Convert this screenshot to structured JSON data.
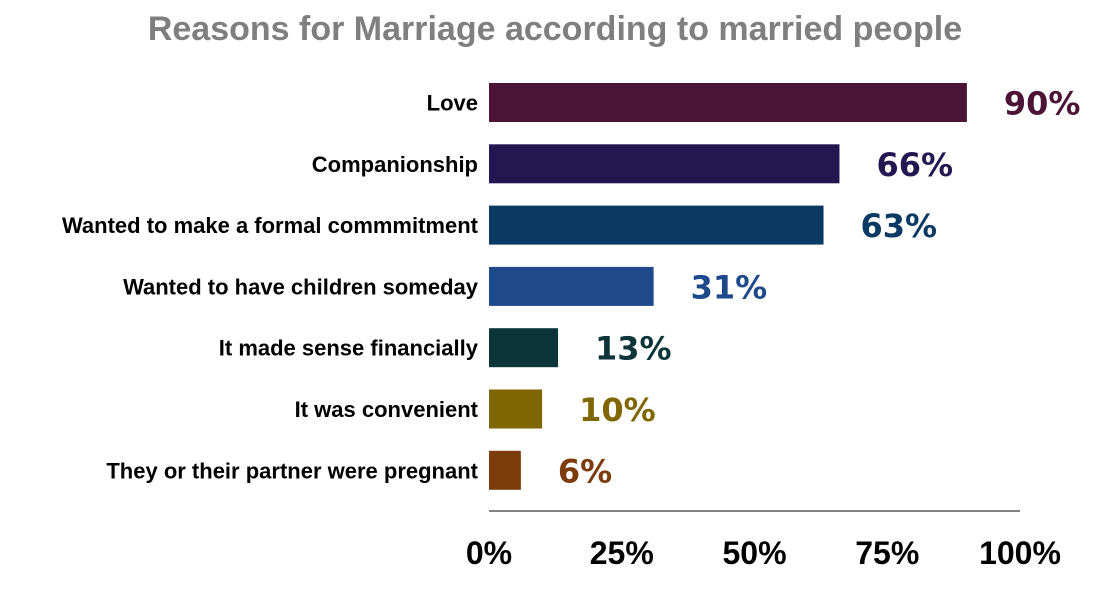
{
  "chart_data": {
    "type": "bar",
    "orientation": "horizontal",
    "title": "Reasons for Marriage according to married people",
    "xlabel": "",
    "ylabel": "",
    "xlim": [
      0,
      100
    ],
    "grid": false,
    "legend": "none",
    "categories": [
      "Love",
      "Companionship",
      "Wanted to make a formal commmitment",
      "Wanted to have children someday",
      "It made sense financially",
      "It was convenient",
      "They or their partner were pregnant"
    ],
    "values": [
      90,
      66,
      63,
      31,
      13,
      10,
      6
    ],
    "value_labels": [
      "90%",
      "66%",
      "63%",
      "31%",
      "13%",
      "10%",
      "6%"
    ],
    "colors": [
      "#4b1436",
      "#241650",
      "#0a3a63",
      "#1e4a8c",
      "#0b3538",
      "#7f6600",
      "#7b3b0a"
    ],
    "x_ticks": [
      "0%",
      "25%",
      "50%",
      "75%",
      "100%"
    ],
    "x_tick_values": [
      0,
      25,
      50,
      75,
      100
    ]
  }
}
